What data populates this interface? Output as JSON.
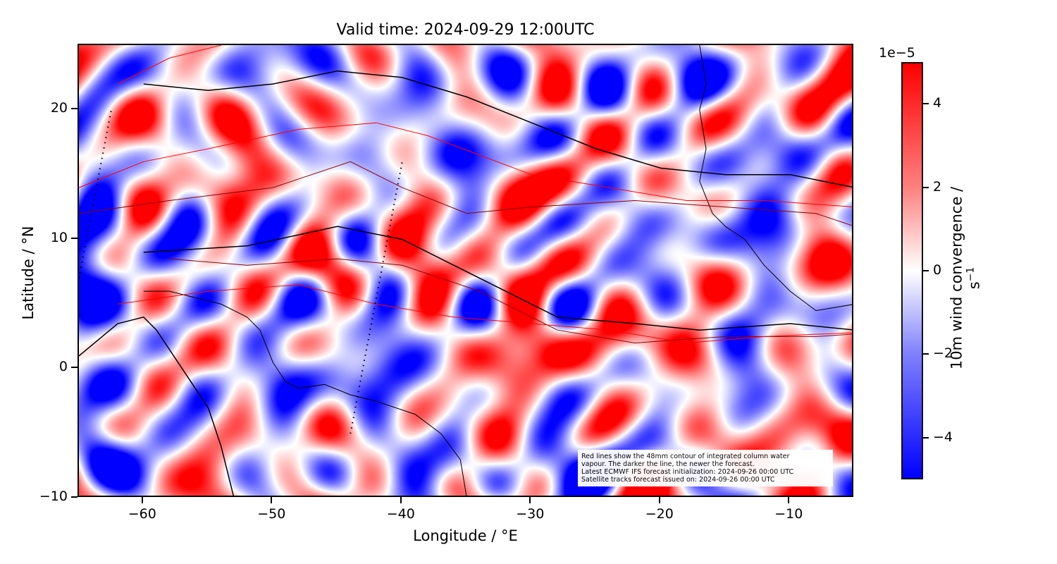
{
  "title": "Valid time: 2024-09-29 12:00UTC",
  "chart_data": {
    "type": "heatmap",
    "title": "Valid time: 2024-09-29 12:00UTC",
    "xlabel": "Longitude / °E",
    "ylabel": "Latitude / °N",
    "xlim": [
      -65,
      -5
    ],
    "ylim": [
      -10,
      25
    ],
    "xticks": [
      -60,
      -50,
      -40,
      -30,
      -20,
      -10
    ],
    "xtick_labels": [
      "−60",
      "−50",
      "−40",
      "−30",
      "−20",
      "−10"
    ],
    "yticks": [
      -10,
      0,
      10,
      20
    ],
    "ytick_labels": [
      "−10",
      "0",
      "10",
      "20"
    ],
    "colormap": "bwr",
    "colorbar": {
      "label": "10m wind convergence / s⁻¹",
      "label_main": "10m wind convergence / s",
      "label_sup": "−1",
      "scale_label": "1e−5",
      "range": [
        -5,
        5
      ],
      "ticks": [
        -4,
        -2,
        0,
        2,
        4
      ],
      "tick_labels": [
        "−4",
        "−2",
        "0",
        "2",
        "4"
      ]
    },
    "contour_color": "#ff0000",
    "coastline_color": "#000000",
    "satellite_tracks": [
      {
        "points": [
          [
            -44,
            -5
          ],
          [
            -40,
            16
          ]
        ]
      },
      {
        "points": [
          [
            -65,
            7
          ],
          [
            -62.5,
            20
          ]
        ]
      }
    ],
    "annotation": [
      "Red lines show the 48mm contour of integrated column water",
      "vapour. The darker the line, the newer the forecast.",
      "Latest ECMWF IFS forecast initialization: 2024-09-26 00:00 UTC",
      "Satellite tracks forecast issued on: 2024-09-26 00:00 UTC"
    ]
  }
}
